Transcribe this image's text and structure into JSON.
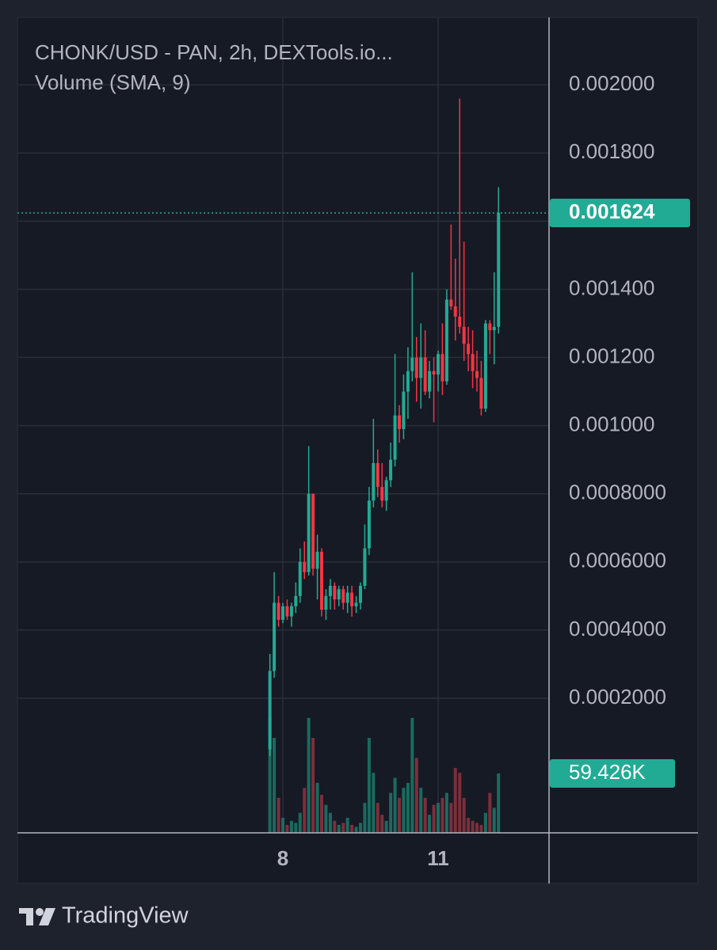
{
  "chart_data": {
    "type": "candlestick",
    "title": "CHONK/USD - PAN, 2h, DEXTools.io...",
    "subtitle": "Volume (SMA, 9)",
    "x": [
      7.75,
      7.833,
      7.917,
      8.0,
      8.083,
      8.167,
      8.25,
      8.333,
      8.417,
      8.5,
      8.583,
      8.667,
      8.75,
      8.833,
      8.917,
      9.0,
      9.083,
      9.167,
      9.25,
      9.333,
      9.417,
      9.5,
      9.583,
      9.667,
      9.75,
      9.833,
      9.917,
      10.0,
      10.083,
      10.167,
      10.25,
      10.333,
      10.417,
      10.5,
      10.583,
      10.667,
      10.75,
      10.833,
      10.917,
      11.0,
      11.083,
      11.167,
      11.25,
      11.333,
      11.417,
      11.5,
      11.583,
      11.667,
      11.75,
      11.833,
      11.917,
      12.0,
      12.083,
      12.167
    ],
    "open": [
      5e-05,
      0.00028,
      0.00048,
      0.00043,
      0.00047,
      0.00044,
      0.00047,
      0.0005,
      0.0006,
      0.00057,
      0.0008,
      0.00058,
      0.00063,
      0.00046,
      0.0005,
      0.00053,
      0.00049,
      0.00052,
      0.00048,
      0.00051,
      0.00047,
      0.00048,
      0.00053,
      0.00064,
      0.00078,
      0.00089,
      0.00082,
      0.00078,
      0.00084,
      0.0009,
      0.00103,
      0.00099,
      0.0011,
      0.00116,
      0.0012,
      0.00114,
      0.0012,
      0.0011,
      0.00116,
      0.00115,
      0.00121,
      0.00113,
      0.00137,
      0.00135,
      0.00132,
      0.00129,
      0.00124,
      0.00121,
      0.00116,
      0.00114,
      0.00105,
      0.0013,
      0.00128,
      0.00129
    ],
    "high": [
      0.00033,
      0.00057,
      0.0005,
      0.00048,
      0.00049,
      0.00048,
      0.00054,
      0.00064,
      0.00066,
      0.00094,
      0.0008,
      0.00068,
      0.00064,
      0.00052,
      0.00055,
      0.00054,
      0.00053,
      0.00053,
      0.00053,
      0.00053,
      0.0005,
      0.00054,
      0.00071,
      0.00082,
      0.00102,
      0.00093,
      0.00089,
      0.00085,
      0.00095,
      0.00121,
      0.00106,
      0.00115,
      0.00123,
      0.00145,
      0.00126,
      0.0013,
      0.00128,
      0.00119,
      0.0012,
      0.00122,
      0.0013,
      0.0014,
      0.00159,
      0.00149,
      0.00196,
      0.00154,
      0.00129,
      0.00128,
      0.00122,
      0.00119,
      0.00131,
      0.00131,
      0.00145,
      0.0017
    ],
    "low": [
      3e-05,
      0.00026,
      0.00041,
      0.00042,
      0.00043,
      0.00041,
      0.00045,
      0.00048,
      0.00055,
      0.00056,
      0.00056,
      0.00049,
      0.00044,
      0.00043,
      0.00046,
      0.00046,
      0.00047,
      0.00046,
      0.00045,
      0.00044,
      0.00045,
      0.00046,
      0.00052,
      0.00062,
      0.00076,
      0.00079,
      0.00076,
      0.00075,
      0.00082,
      0.00088,
      0.00095,
      0.00096,
      0.00102,
      0.00113,
      0.00107,
      0.00105,
      0.00109,
      0.00108,
      0.00101,
      0.0011,
      0.00109,
      0.00112,
      0.00134,
      0.00125,
      0.00127,
      0.00119,
      0.00116,
      0.00111,
      0.0011,
      0.00103,
      0.00104,
      0.00121,
      0.00118,
      0.00127
    ],
    "close": [
      0.00028,
      0.00048,
      0.00043,
      0.00047,
      0.00044,
      0.00047,
      0.0005,
      0.0006,
      0.00057,
      0.0008,
      0.00058,
      0.00063,
      0.00046,
      0.0005,
      0.00053,
      0.00049,
      0.00052,
      0.00048,
      0.00051,
      0.00047,
      0.00048,
      0.00053,
      0.00064,
      0.00078,
      0.00089,
      0.00082,
      0.00078,
      0.00084,
      0.0009,
      0.00103,
      0.00099,
      0.0011,
      0.00116,
      0.0012,
      0.00114,
      0.0012,
      0.0011,
      0.00116,
      0.00115,
      0.00121,
      0.00113,
      0.00137,
      0.00135,
      0.00132,
      0.00129,
      0.00124,
      0.00121,
      0.00116,
      0.00114,
      0.00105,
      0.0013,
      0.00128,
      0.00129,
      0.001624
    ],
    "volume": [
      115000,
      95000,
      35000,
      15000,
      8000,
      12000,
      10000,
      20000,
      45000,
      115000,
      95000,
      50000,
      38000,
      28000,
      20000,
      12000,
      8000,
      10000,
      15000,
      8000,
      6000,
      10000,
      30000,
      95000,
      60000,
      30000,
      18000,
      12000,
      40000,
      55000,
      35000,
      45000,
      50000,
      115000,
      75000,
      45000,
      35000,
      18000,
      28000,
      30000,
      35000,
      40000,
      30000,
      65000,
      60000,
      35000,
      15000,
      12000,
      10000,
      8000,
      20000,
      40000,
      25000,
      59426
    ],
    "xlim": [
      2.872,
      13.143
    ],
    "xticks": [
      8,
      11
    ],
    "ylim": [
      -0.000195,
      0.002198
    ],
    "yticks": [
      {
        "value": 0.0002,
        "label": "0.0002000"
      },
      {
        "value": 0.0004,
        "label": "0.0004000"
      },
      {
        "value": 0.0006,
        "label": "0.0006000"
      },
      {
        "value": 0.0008,
        "label": "0.0008000"
      },
      {
        "value": 0.001,
        "label": "0.001000"
      },
      {
        "value": 0.0012,
        "label": "0.001200"
      },
      {
        "value": 0.0014,
        "label": "0.001400"
      },
      {
        "value": 0.0016,
        "label": "0.001600"
      },
      {
        "value": 0.0018,
        "label": "0.001800"
      },
      {
        "value": 0.002,
        "label": "0.002000"
      }
    ],
    "volume_lim": [
      0,
      160000
    ],
    "price_label": {
      "value": 0.001624,
      "label": "0.001624"
    },
    "volume_label": {
      "value": 59426,
      "label": "59.426K"
    },
    "up_color": "#22ab94",
    "down_color": "#f23645",
    "volume_up_color": "#1a6b5f",
    "volume_down_color": "#7c2f3b",
    "grid": true
  },
  "brand": "TradingView"
}
